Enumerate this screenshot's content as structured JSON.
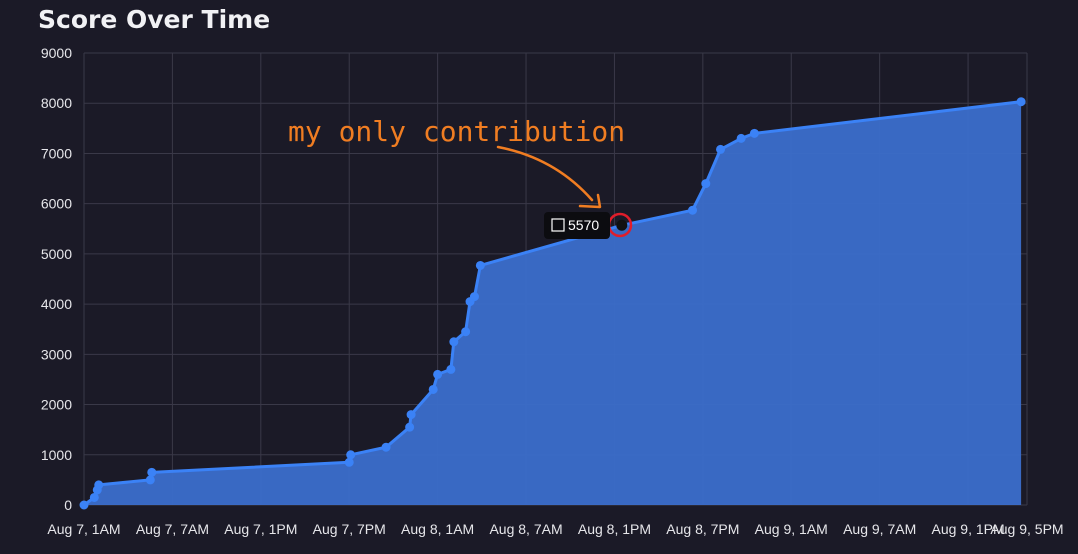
{
  "chart_data": {
    "type": "area",
    "title": "Score Over Time",
    "xlabel": "",
    "ylabel": "",
    "x_start": "Aug 7, 1AM",
    "ylim": [
      0,
      9000
    ],
    "y_ticks": [
      0,
      1000,
      2000,
      3000,
      4000,
      5000,
      6000,
      7000,
      8000,
      9000
    ],
    "x_ticks": [
      {
        "label": "Aug 7, 1AM",
        "hours": 0
      },
      {
        "label": "Aug 7, 7AM",
        "hours": 6
      },
      {
        "label": "Aug 7, 1PM",
        "hours": 12
      },
      {
        "label": "Aug 7, 7PM",
        "hours": 18
      },
      {
        "label": "Aug 8, 1AM",
        "hours": 24
      },
      {
        "label": "Aug 8, 7AM",
        "hours": 30
      },
      {
        "label": "Aug 8, 1PM",
        "hours": 36
      },
      {
        "label": "Aug 8, 7PM",
        "hours": 42
      },
      {
        "label": "Aug 9, 1AM",
        "hours": 48
      },
      {
        "label": "Aug 9, 7AM",
        "hours": 54
      },
      {
        "label": "Aug 9, 1PM",
        "hours": 60
      },
      {
        "label": "Aug 9, 5PM",
        "hours": 64
      }
    ],
    "series": [
      {
        "color": "#3b82f6",
        "fill": "#3b6ecb",
        "points": [
          {
            "x": 0.0,
            "y": 0
          },
          {
            "x": 0.7,
            "y": 150
          },
          {
            "x": 0.9,
            "y": 300
          },
          {
            "x": 1.0,
            "y": 400
          },
          {
            "x": 4.5,
            "y": 500
          },
          {
            "x": 4.6,
            "y": 650
          },
          {
            "x": 18.0,
            "y": 850
          },
          {
            "x": 18.1,
            "y": 1000
          },
          {
            "x": 20.5,
            "y": 1150
          },
          {
            "x": 22.1,
            "y": 1550
          },
          {
            "x": 22.2,
            "y": 1800
          },
          {
            "x": 23.7,
            "y": 2300
          },
          {
            "x": 24.0,
            "y": 2600
          },
          {
            "x": 24.9,
            "y": 2700
          },
          {
            "x": 25.1,
            "y": 3250
          },
          {
            "x": 25.9,
            "y": 3450
          },
          {
            "x": 26.2,
            "y": 4050
          },
          {
            "x": 26.5,
            "y": 4150
          },
          {
            "x": 26.9,
            "y": 4770
          },
          {
            "x": 36.5,
            "y": 5570
          },
          {
            "x": 41.3,
            "y": 5870
          },
          {
            "x": 42.2,
            "y": 6400
          },
          {
            "x": 43.2,
            "y": 7080
          },
          {
            "x": 44.6,
            "y": 7300
          },
          {
            "x": 45.5,
            "y": 7400
          },
          {
            "x": 63.6,
            "y": 8030
          }
        ]
      }
    ],
    "tooltip": {
      "x": 36.5,
      "value": "5570"
    },
    "annotation": "my only contribution",
    "grid": true,
    "legend": "none"
  }
}
